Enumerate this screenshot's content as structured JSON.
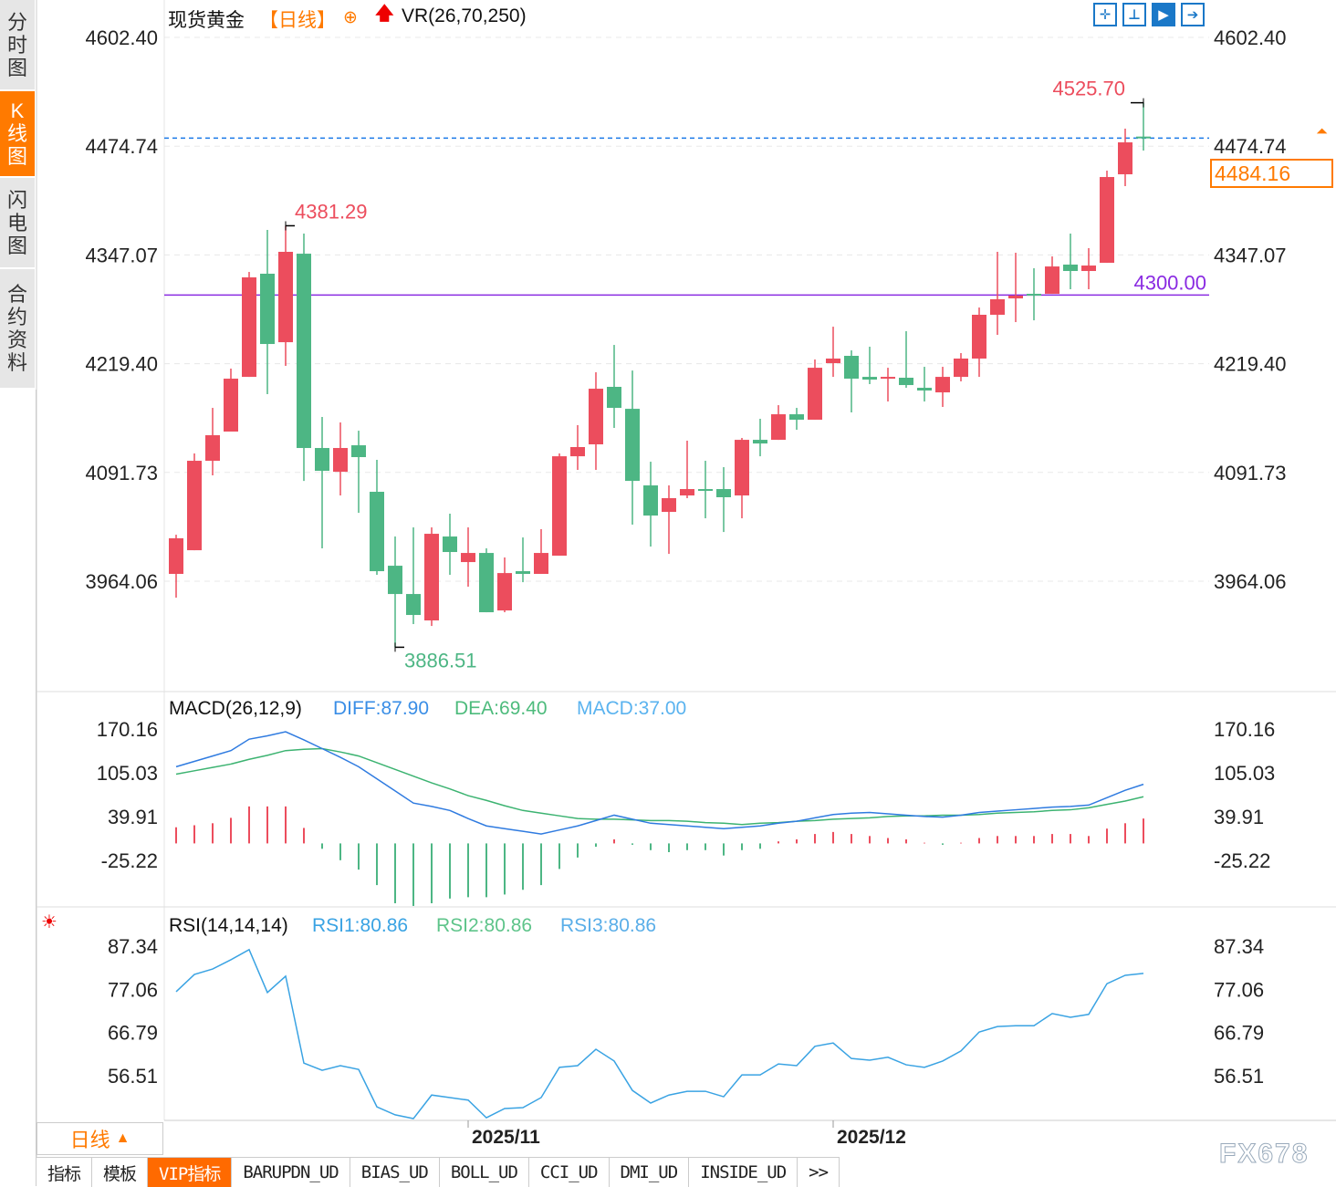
{
  "sidebar": {
    "items": [
      {
        "label": "分时图",
        "active": false
      },
      {
        "label": "K线图",
        "active": true
      },
      {
        "label": "闪电图",
        "active": false
      },
      {
        "label": "合约资料",
        "active": false
      }
    ]
  },
  "header": {
    "title": "现货黄金",
    "period": "【日线】",
    "period_icon": "crosshair-circle-icon",
    "vr_icon": "red-up-arrow-icon",
    "vr": "VR(26,70,250)"
  },
  "toolbar": {
    "icons": [
      "crosshair-icon",
      "zoom-range-icon",
      "play-right-icon",
      "jump-end-icon"
    ]
  },
  "colors": {
    "up": "#ec4d5d",
    "down": "#4db684",
    "diff": "#2f7be0",
    "dea": "#3cb371",
    "macd_text": "#5ab3ef",
    "rsi": "#3aa3e3",
    "accent": "#ff7a00",
    "support": "#8a2be2"
  },
  "current_price": "4484.16",
  "bottom": {
    "period_label": "日线",
    "tabs": [
      "指标",
      "模板",
      "VIP指标",
      "BARUPDN_UD",
      "BIAS_UD",
      "BOLL_UD",
      "CCI_UD",
      "DMI_UD",
      "INSIDE_UD",
      ">>"
    ],
    "active_tab": "VIP指标",
    "watermark": "FX678"
  },
  "chart_data": [
    {
      "type": "candlestick",
      "name": "现货黄金",
      "y_ticks": [
        "4602.40",
        "4474.74",
        "4347.07",
        "4219.40",
        "4091.73",
        "3964.06"
      ],
      "ylim": [
        3964.06,
        4602.4
      ],
      "x_ticks": [
        {
          "index": 16,
          "label": "2025/11"
        },
        {
          "index": 36,
          "label": "2025/12"
        }
      ],
      "hline": {
        "value": 4300.0,
        "label": "4300.00"
      },
      "current_line": 4484.16,
      "annotations": [
        {
          "index": 53,
          "value": 4525.7,
          "label": "4525.70",
          "kind": "high"
        },
        {
          "index": 6,
          "value": 4381.29,
          "label": "4381.29",
          "kind": "high"
        },
        {
          "index": 12,
          "value": 3886.51,
          "label": "3886.51",
          "kind": "low"
        }
      ],
      "ohlc": [
        [
          3972.6,
          4018.6,
          3944.7,
          4014.4
        ],
        [
          4000.4,
          4114.0,
          4000.4,
          4105.4
        ],
        [
          4105.4,
          4167.5,
          4088.3,
          4135.4
        ],
        [
          4139.7,
          4213.6,
          4139.7,
          4201.8
        ],
        [
          4203.9,
          4327.1,
          4203.9,
          4320.7
        ],
        [
          4325.0,
          4376.4,
          4183.6,
          4242.5
        ],
        [
          4244.6,
          4381.29,
          4216.8,
          4350.7
        ],
        [
          4348.5,
          4372.1,
          4081.8,
          4120.4
        ],
        [
          4120.4,
          4156.8,
          4002.6,
          4093.6
        ],
        [
          4092.5,
          4150.4,
          4064.7,
          4120.4
        ],
        [
          4123.6,
          4140.7,
          4044.3,
          4109.7
        ],
        [
          4069.0,
          4106.5,
          3971.5,
          3975.8
        ],
        [
          3982.2,
          4016.5,
          3886.51,
          3949.0
        ],
        [
          3949.0,
          4027.2,
          3913.7,
          3924.4
        ],
        [
          3918.0,
          4027.2,
          3911.5,
          4019.7
        ],
        [
          4016.5,
          4043.3,
          3971.5,
          3998.3
        ],
        [
          3986.5,
          4027.2,
          3957.6,
          3997.2
        ],
        [
          3997.2,
          4002.6,
          3927.6,
          3927.6
        ],
        [
          3929.7,
          3991.9,
          3927.6,
          3973.6
        ],
        [
          3975.8,
          4015.4,
          3962.9,
          3972.6
        ],
        [
          3972.6,
          4025.1,
          3972.6,
          3997.2
        ],
        [
          3994.0,
          4114.0,
          3994.0,
          4110.7
        ],
        [
          4110.7,
          4147.2,
          4094.7,
          4121.5
        ],
        [
          4124.7,
          4209.3,
          4094.7,
          4190.0
        ],
        [
          4192.2,
          4241.4,
          4144.0,
          4167.5
        ],
        [
          4166.4,
          4211.4,
          4030.4,
          4081.8
        ],
        [
          4076.5,
          4104.3,
          4004.7,
          4041.1
        ],
        [
          4045.4,
          4076.5,
          3996.1,
          4061.5
        ],
        [
          4064.7,
          4129.0,
          4061.5,
          4072.2
        ],
        [
          4072.2,
          4105.4,
          4037.9,
          4071.1
        ],
        [
          4072.2,
          4097.9,
          4021.8,
          4062.6
        ],
        [
          4064.7,
          4132.2,
          4037.9,
          4130.0
        ],
        [
          4130.0,
          4154.7,
          4110.7,
          4125.7
        ],
        [
          4130.0,
          4170.7,
          4130.0,
          4160.0
        ],
        [
          4160.0,
          4167.5,
          4141.8,
          4153.6
        ],
        [
          4153.6,
          4224.3,
          4153.6,
          4214.6
        ],
        [
          4220.0,
          4262.8,
          4203.9,
          4225.4
        ],
        [
          4228.6,
          4235.0,
          4162.2,
          4201.8
        ],
        [
          4203.9,
          4239.3,
          4195.4,
          4200.7
        ],
        [
          4202.9,
          4214.6,
          4175.0,
          4203.9
        ],
        [
          4202.9,
          4257.5,
          4191.1,
          4194.3
        ],
        [
          4191.1,
          4215.7,
          4175.0,
          4187.9
        ],
        [
          4185.7,
          4215.7,
          4168.6,
          4203.9
        ],
        [
          4203.9,
          4231.8,
          4198.6,
          4225.4
        ],
        [
          4225.4,
          4285.3,
          4203.9,
          4276.8
        ],
        [
          4276.8,
          4350.7,
          4253.2,
          4295.0
        ],
        [
          4296.0,
          4349.6,
          4268.2,
          4299.3
        ],
        [
          4301.4,
          4331.4,
          4270.3,
          4299.3
        ],
        [
          4301.4,
          4345.3,
          4301.4,
          4333.5
        ],
        [
          4335.7,
          4372.1,
          4306.8,
          4328.2
        ],
        [
          4328.2,
          4355.0,
          4306.8,
          4334.6
        ],
        [
          4337.8,
          4446.0,
          4337.8,
          4438.5
        ],
        [
          4441.7,
          4495.3,
          4427.8,
          4479.2
        ],
        [
          4486.0,
          4525.7,
          4469.6,
          4484.16
        ]
      ]
    },
    {
      "type": "line+bar",
      "name": "MACD",
      "title": "MACD(26,12,9)",
      "legend": [
        "DIFF:87.90",
        "DEA:69.40",
        "MACD:37.00"
      ],
      "y_ticks": [
        "170.16",
        "105.03",
        "39.91",
        "-25.22"
      ],
      "ylim": [
        -25.22,
        170.16
      ],
      "diff": [
        114,
        122,
        130,
        138,
        155,
        160,
        166,
        154,
        141,
        128,
        114,
        96,
        78,
        60,
        55,
        49,
        37,
        26,
        22,
        18,
        14,
        20,
        26,
        34,
        42,
        36,
        30,
        28,
        26,
        24,
        22,
        24,
        26,
        30,
        33,
        38,
        43,
        45,
        46,
        44,
        42,
        40,
        39,
        42,
        46,
        48,
        50,
        52,
        54,
        55,
        57,
        68,
        79,
        87.9
      ],
      "dea": [
        103,
        108,
        113,
        118,
        125,
        131,
        138,
        140,
        141,
        136,
        130,
        120,
        110,
        100,
        90,
        81,
        71,
        64,
        56,
        49,
        45,
        41,
        37,
        36,
        36,
        35,
        34,
        34,
        33,
        31,
        30,
        28,
        30,
        31,
        33,
        34,
        36,
        37,
        38,
        40,
        41,
        41,
        42,
        42,
        43,
        45,
        46,
        47,
        49,
        50,
        53,
        58,
        63,
        69.4
      ],
      "macd": [
        24,
        27,
        30,
        38,
        55,
        55,
        55,
        23,
        -8,
        -25,
        -39,
        -62,
        -89,
        -93,
        -89,
        -82,
        -80,
        -80,
        -76,
        -69,
        -62,
        -38,
        -21,
        -5,
        6,
        -2,
        -10,
        -13,
        -10,
        -10,
        -18,
        -10,
        -8,
        3,
        6,
        14,
        17,
        14,
        11,
        8,
        6,
        1,
        -2,
        1,
        8,
        11,
        11,
        11,
        14,
        14,
        11,
        22,
        30,
        37
      ]
    },
    {
      "type": "line",
      "name": "RSI",
      "title": "RSI(14,14,14)",
      "legend": [
        "RSI1:80.86",
        "RSI2:80.86",
        "RSI3:80.86"
      ],
      "y_ticks": [
        "87.34",
        "77.06",
        "66.79",
        "56.51"
      ],
      "ylim": [
        56.51,
        87.34
      ],
      "rsi": [
        76.5,
        80.6,
        81.9,
        84.1,
        86.5,
        76.3,
        80.2,
        59.5,
        57.8,
        58.9,
        58.0,
        49.1,
        47.2,
        46.3,
        51.9,
        51.3,
        50.7,
        46.5,
        48.7,
        48.9,
        51.3,
        58.5,
        58.9,
        62.8,
        60.0,
        53.0,
        50.0,
        51.9,
        52.8,
        52.8,
        51.5,
        56.7,
        56.7,
        59.3,
        58.9,
        63.5,
        64.3,
        60.6,
        60.2,
        60.9,
        59.1,
        58.5,
        60.0,
        62.4,
        66.9,
        68.2,
        68.4,
        68.4,
        71.3,
        70.4,
        71.1,
        78.4,
        80.4,
        80.86
      ]
    }
  ]
}
